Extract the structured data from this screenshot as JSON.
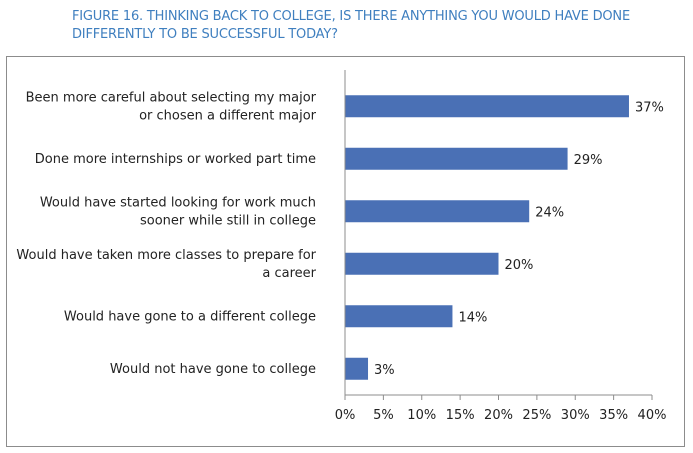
{
  "chart_data": {
    "type": "bar",
    "orientation": "horizontal",
    "title_lines": [
      "FIGURE 16. THINKING BACK TO COLLEGE, IS THERE ANYTHING YOU WOULD HAVE DONE",
      "DIFFERENTLY TO BE SUCCESSFUL TODAY?"
    ],
    "categories": [
      [
        "Been more careful about selecting my major",
        "or chosen a different major"
      ],
      [
        "Done more internships or worked part time"
      ],
      [
        "Would have started looking for work much",
        "sooner while still in college"
      ],
      [
        "Would have taken more classes to prepare for",
        "a career"
      ],
      [
        "Would have gone to a different college"
      ],
      [
        "Would not have gone to college"
      ]
    ],
    "values": [
      37,
      29,
      24,
      20,
      14,
      3
    ],
    "value_labels": [
      "37%",
      "29%",
      "24%",
      "20%",
      "14%",
      "3%"
    ],
    "xlim": [
      0,
      40
    ],
    "x_ticks": [
      "0%",
      "5%",
      "10%",
      "15%",
      "20%",
      "25%",
      "30%",
      "35%",
      "40%"
    ],
    "bar_color": "#4a70b5",
    "grid": false
  }
}
